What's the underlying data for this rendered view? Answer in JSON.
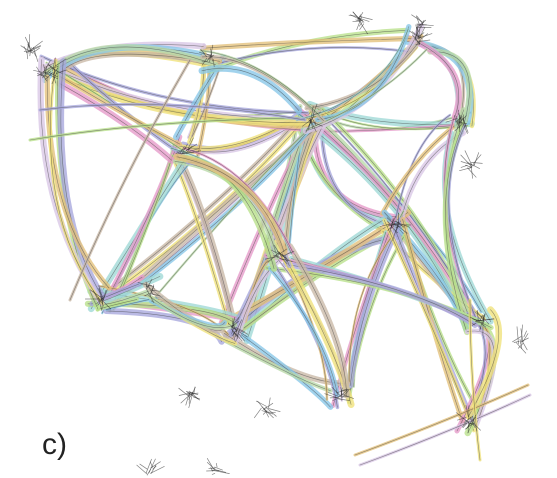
{
  "figure": {
    "panel_label": "c)"
  },
  "colors": {
    "background": "#ffffff",
    "edge_outline": "#3a3a3a",
    "palette": [
      "#9fd9d6",
      "#e59ac9",
      "#b9e08a",
      "#a6a6dc",
      "#e3c07a",
      "#d9c7e6",
      "#f0e27a",
      "#c9b8a6",
      "#88c7e8",
      "#b8d8a8"
    ]
  }
}
